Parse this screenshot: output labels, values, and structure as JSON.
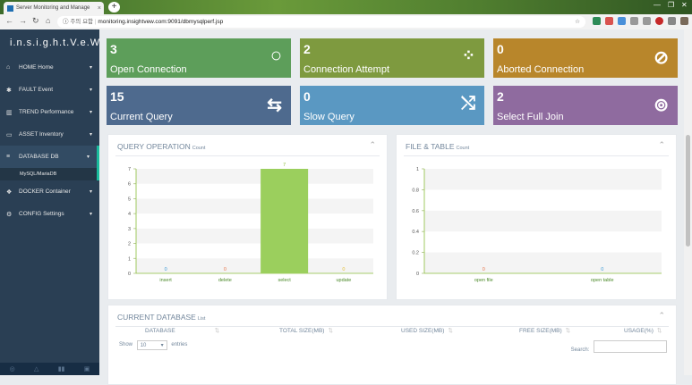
{
  "browser": {
    "tab_title": "Server Monitoring and Manage",
    "warning": "주의 요함",
    "url": "monitoring.insightvew.com:9091/dbmysqlperf.jsp"
  },
  "sidebar": {
    "brand": "i.n.s.i.g.h.t.V.e.W",
    "items": [
      {
        "label": "HOME Home",
        "icon": "home-icon"
      },
      {
        "label": "FAULT Event",
        "icon": "bug-icon"
      },
      {
        "label": "TREND Performance",
        "icon": "bar-chart-icon"
      },
      {
        "label": "ASSET Inventory",
        "icon": "desktop-icon"
      },
      {
        "label": "DATABASE DB",
        "icon": "database-icon"
      },
      {
        "label": "DOCKER Container",
        "icon": "cubes-icon"
      },
      {
        "label": "CONFIG Settings",
        "icon": "cogs-icon"
      }
    ],
    "subitem": "MySQL/MariaDB"
  },
  "stats": [
    {
      "value": "3",
      "label": "Open Connection",
      "color": "#5d9e5a",
      "icon": "circle-icon"
    },
    {
      "value": "2",
      "label": "Connection Attempt",
      "color": "#7e9a3f",
      "icon": "spinner-icon"
    },
    {
      "value": "0",
      "label": "Aborted Connection",
      "color": "#b8862b",
      "icon": "ban-icon"
    },
    {
      "value": "15",
      "label": "Current Query",
      "color": "#4e6a8e",
      "icon": "exchange-icon"
    },
    {
      "value": "0",
      "label": "Slow Query",
      "color": "#5a98c2",
      "icon": "random-icon"
    },
    {
      "value": "2",
      "label": "Select Full Join",
      "color": "#8f6b9f",
      "icon": "life-ring-icon"
    }
  ],
  "query_panel": {
    "title": "QUERY OPERATION",
    "subtitle": "Count"
  },
  "file_panel": {
    "title": "FILE & TABLE",
    "subtitle": "Count"
  },
  "db_panel": {
    "title": "CURRENT DATABASE",
    "subtitle": "List",
    "show_label": "Show",
    "entries_value": "10",
    "entries_label": "entries",
    "search_label": "Search:",
    "columns": [
      "DATABASE",
      "TOTAL SIZE(MB)",
      "USED SIZE(MB)",
      "FREE SIZE(MB)",
      "USAGE(%)"
    ]
  },
  "chart_data": [
    {
      "type": "bar",
      "categories": [
        "insert",
        "delete",
        "select",
        "update"
      ],
      "values": [
        0,
        0,
        7,
        0
      ],
      "ylim": [
        0,
        7
      ],
      "yticks": [
        "0",
        "1",
        "2",
        "3",
        "4",
        "5",
        "6",
        "7"
      ],
      "value_colors": [
        "#3d9bd6",
        "#e8754a",
        "#8bbe3c",
        "#e5c03b"
      ],
      "bar_color": "#9bcf5d"
    },
    {
      "type": "bar",
      "categories": [
        "open file",
        "open table"
      ],
      "values": [
        0,
        0
      ],
      "ylim": [
        0,
        1
      ],
      "yticks": [
        "0",
        "0.2",
        "0.4",
        "0.6",
        "0.8",
        "1"
      ],
      "value_colors": [
        "#e8754a",
        "#3d9bd6"
      ]
    }
  ]
}
